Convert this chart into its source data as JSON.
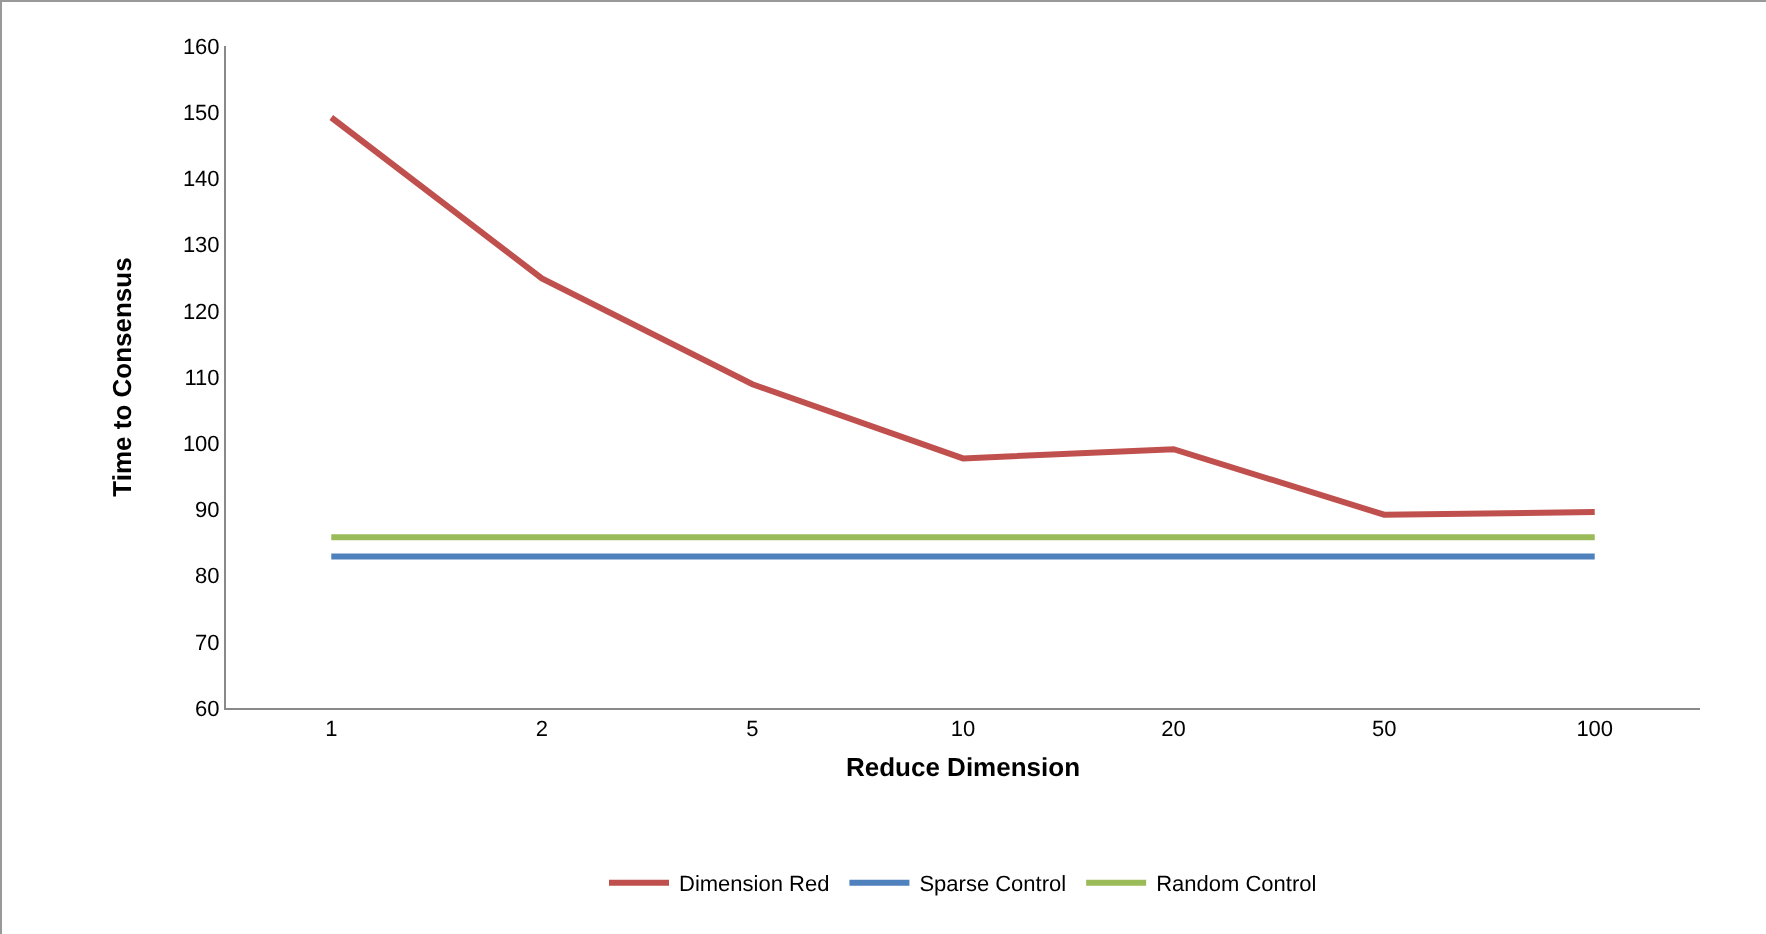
{
  "chart_data": {
    "type": "line",
    "xlabel": "Reduce Dimension",
    "ylabel": "Time to Consensus",
    "categories": [
      "1",
      "2",
      "5",
      "10",
      "20",
      "50",
      "100"
    ],
    "series": [
      {
        "name": "Dimension Red",
        "color": "#c0504d",
        "values": [
          149.2,
          124.9,
          108.9,
          97.7,
          99.1,
          89.2,
          89.6
        ]
      },
      {
        "name": "Sparse Control",
        "color": "#4f81bd",
        "values": [
          82.9,
          82.9,
          82.9,
          82.9,
          82.9,
          82.9,
          82.9
        ]
      },
      {
        "name": "Random Control",
        "color": "#9bbb59",
        "values": [
          85.8,
          85.8,
          85.8,
          85.8,
          85.8,
          85.8,
          85.8
        ]
      }
    ],
    "ylim": [
      60,
      160
    ],
    "yticks": [
      60,
      70,
      80,
      90,
      100,
      110,
      120,
      130,
      140,
      150,
      160
    ],
    "grid": false,
    "legend": "bottom",
    "marker": "none",
    "line_style": "solid"
  }
}
